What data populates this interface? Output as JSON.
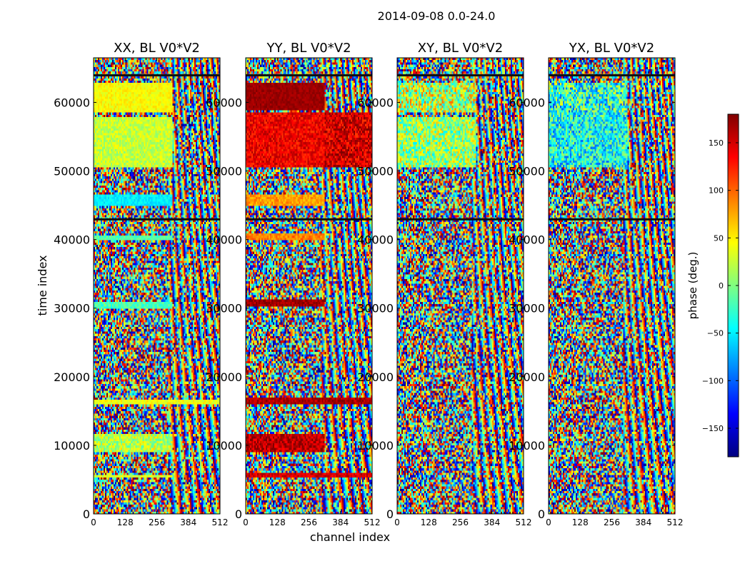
{
  "figure_title": "2014-09-08 0.0-24.0",
  "chart_data": {
    "type": "heatmap",
    "suptitle": "2014-09-08 0.0-24.0",
    "xlabel": "channel index",
    "ylabel": "time index",
    "xlim": [
      0,
      512
    ],
    "ylim": [
      0,
      66500
    ],
    "xticks": [
      0,
      128,
      256,
      384,
      512
    ],
    "yticks": [
      0,
      10000,
      20000,
      30000,
      40000,
      50000,
      60000
    ],
    "panels": [
      {
        "title": "XX, BL V0*V2",
        "coherent_bands": [
          {
            "t0": 58500,
            "t1": 63000,
            "c0": 0,
            "c1": 320,
            "phase": 45,
            "spread": 14
          },
          {
            "t0": 50500,
            "t1": 58000,
            "c0": 0,
            "c1": 320,
            "phase": 25,
            "spread": 24
          },
          {
            "t0": 45000,
            "t1": 46500,
            "c0": 0,
            "c1": 320,
            "phase": -50,
            "spread": 14
          },
          {
            "t0": 40000,
            "t1": 40700,
            "c0": 0,
            "c1": 320,
            "phase": -15,
            "spread": 18
          },
          {
            "t0": 29800,
            "t1": 30800,
            "c0": 0,
            "c1": 320,
            "phase": -20,
            "spread": 22
          },
          {
            "t0": 16000,
            "t1": 16700,
            "c0": 0,
            "c1": 512,
            "phase": 40,
            "spread": 18
          },
          {
            "t0": 9000,
            "t1": 11600,
            "c0": 0,
            "c1": 320,
            "phase": 20,
            "spread": 40
          },
          {
            "t0": 5200,
            "t1": 5800,
            "c0": 0,
            "c1": 320,
            "phase": 30,
            "spread": 20
          }
        ]
      },
      {
        "title": "YY, BL V0*V2",
        "coherent_bands": [
          {
            "t0": 59000,
            "t1": 63000,
            "c0": 0,
            "c1": 320,
            "phase": 170,
            "spread": 10
          },
          {
            "t0": 50500,
            "t1": 58500,
            "c0": 0,
            "c1": 320,
            "phase": 140,
            "spread": 25
          },
          {
            "t0": 50500,
            "t1": 58500,
            "c0": 320,
            "c1": 512,
            "phase": 150,
            "spread": 35
          },
          {
            "t0": 45000,
            "t1": 46500,
            "c0": 0,
            "c1": 320,
            "phase": 80,
            "spread": 20
          },
          {
            "t0": 40000,
            "t1": 40800,
            "c0": 0,
            "c1": 320,
            "phase": 90,
            "spread": 20
          },
          {
            "t0": 30200,
            "t1": 31200,
            "c0": 0,
            "c1": 320,
            "phase": 170,
            "spread": 20
          },
          {
            "t0": 16000,
            "t1": 17000,
            "c0": 0,
            "c1": 512,
            "phase": 165,
            "spread": 18
          },
          {
            "t0": 9000,
            "t1": 11800,
            "c0": 0,
            "c1": 320,
            "phase": 160,
            "spread": 30
          },
          {
            "t0": 5200,
            "t1": 5900,
            "c0": 0,
            "c1": 512,
            "phase": 150,
            "spread": 20
          }
        ]
      },
      {
        "title": "XY, BL V0*V2",
        "coherent_bands": [
          {
            "t0": 50500,
            "t1": 58000,
            "c0": 0,
            "c1": 320,
            "phase": 10,
            "spread": 60
          },
          {
            "t0": 58500,
            "t1": 63000,
            "c0": 0,
            "c1": 320,
            "phase": 20,
            "spread": 80
          }
        ]
      },
      {
        "title": "YX, BL V0*V2",
        "coherent_bands": [
          {
            "t0": 50500,
            "t1": 58500,
            "c0": 0,
            "c1": 320,
            "phase": -40,
            "spread": 60
          },
          {
            "t0": 58500,
            "t1": 63000,
            "c0": 0,
            "c1": 320,
            "phase": -30,
            "spread": 80
          }
        ]
      }
    ],
    "colorbar": {
      "label": "phase (deg.)",
      "range": [
        -180,
        180
      ],
      "ticks": [
        -150,
        -100,
        -50,
        0,
        50,
        100,
        150
      ],
      "tick_labels": [
        "−150",
        "−100",
        "−50",
        "0",
        "50",
        "100",
        "150"
      ],
      "colormap": "jet"
    }
  }
}
